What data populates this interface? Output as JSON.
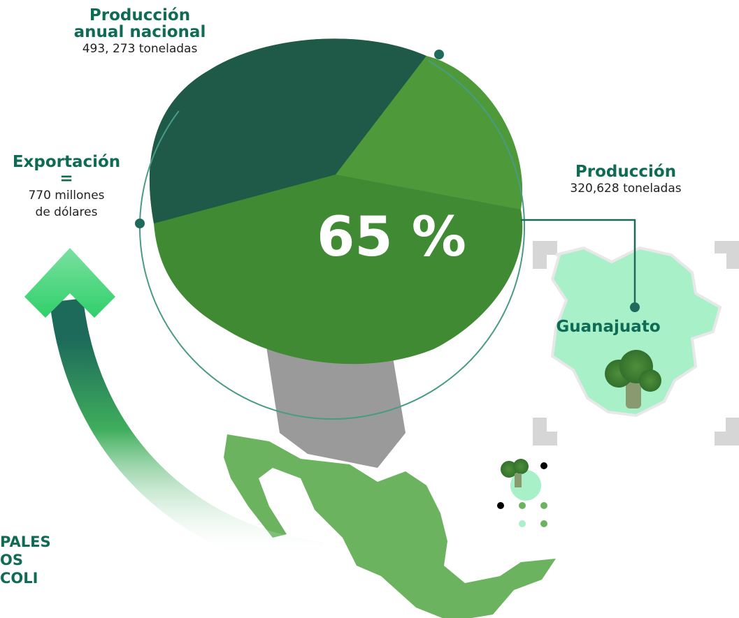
{
  "production_national": {
    "title": "Producción anual nacional",
    "value": "493, 273 toneladas"
  },
  "export": {
    "title": "Exportación",
    "symbol": "=",
    "value_lines": [
      "770 millones",
      "de dólares"
    ]
  },
  "production_state": {
    "title": "Producción",
    "value": "320,628 toneladas"
  },
  "share": "65 %",
  "state": "Guanajuato",
  "side_title_lines": [
    "PALES",
    "OS",
    "COLI"
  ]
}
